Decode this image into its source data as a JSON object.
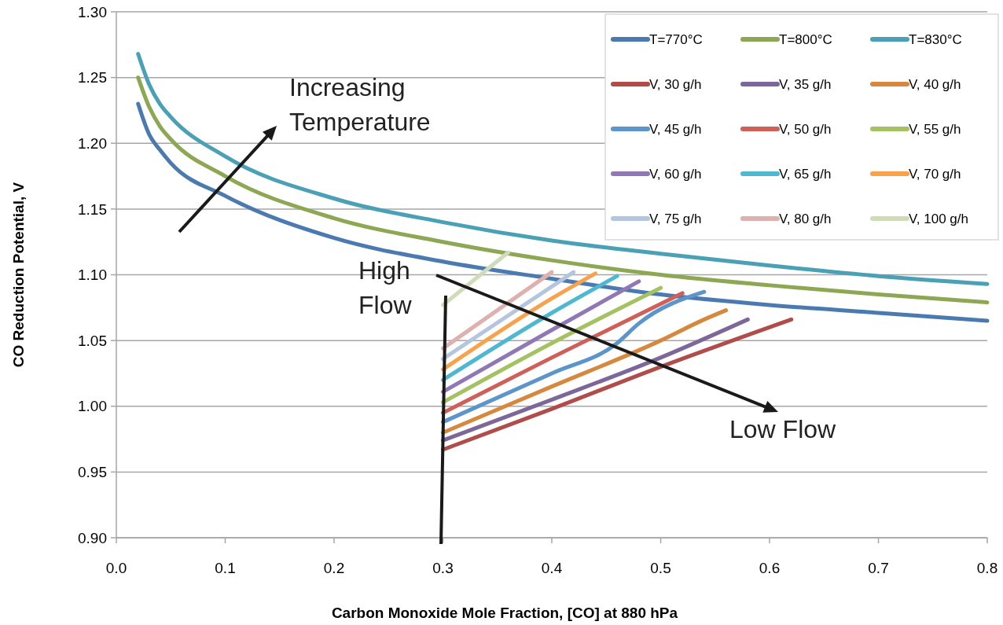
{
  "chart_data": {
    "type": "line",
    "xlabel": "Carbon Monoxide Mole Fraction, [CO] at 880 hPa",
    "ylabel": "CO Reduction Potential, V",
    "xlim": [
      0,
      0.8
    ],
    "xticks": [
      {
        "value": 0,
        "label": "0.0"
      },
      0.1,
      0.2,
      0.3,
      0.4,
      0.5,
      0.6,
      0.7,
      0.8
    ],
    "ylim": [
      0.9,
      1.3
    ],
    "yticks": [
      {
        "value": 0.9,
        "label": "0.90"
      },
      0.95,
      {
        "value": 1,
        "label": "1.00"
      },
      1.05,
      {
        "value": 1.1,
        "label": "1.10"
      },
      1.15,
      {
        "value": 1.2,
        "label": "1.20"
      },
      1.25,
      {
        "value": 1.3,
        "label": "1.30"
      }
    ],
    "grid": "y",
    "legend": "top right",
    "line_style": "solid",
    "marker": "none",
    "annotations": [
      "Increasing Temperature",
      "High Flow",
      "Low Flow"
    ],
    "series": [
      {
        "name": "T=770°C",
        "color": "#4a7ab0",
        "x": [
          0.02,
          0.03,
          0.04,
          0.05,
          0.1,
          0.2,
          0.3,
          0.4,
          0.5,
          0.6,
          0.7,
          0.8
        ],
        "values": [
          1.23,
          1.207,
          1.195,
          1.185,
          1.16,
          1.128,
          1.11,
          1.097,
          1.085,
          1.077,
          1.071,
          1.065
        ]
      },
      {
        "name": "T=800°C",
        "color": "#8da752",
        "x": [
          0.02,
          0.03,
          0.04,
          0.05,
          0.1,
          0.2,
          0.3,
          0.4,
          0.5,
          0.6,
          0.7,
          0.8
        ],
        "values": [
          1.25,
          1.228,
          1.213,
          1.203,
          1.175,
          1.143,
          1.125,
          1.111,
          1.1,
          1.092,
          1.085,
          1.079
        ]
      },
      {
        "name": "T=830°C",
        "color": "#4aa0b5",
        "x": [
          0.02,
          0.03,
          0.04,
          0.05,
          0.1,
          0.2,
          0.3,
          0.4,
          0.5,
          0.6,
          0.7,
          0.8
        ],
        "values": [
          1.268,
          1.245,
          1.23,
          1.22,
          1.19,
          1.158,
          1.14,
          1.126,
          1.116,
          1.107,
          1.099,
          1.093
        ]
      },
      {
        "name": "V, 30 g/h",
        "color": "#b04c49",
        "x": [
          0.3,
          0.4,
          0.5,
          0.62
        ],
        "values": [
          0.967,
          0.998,
          1.03,
          1.066
        ]
      },
      {
        "name": "V, 35 g/h",
        "color": "#7d6699",
        "x": [
          0.3,
          0.4,
          0.5,
          0.58
        ],
        "values": [
          0.974,
          1.005,
          1.037,
          1.066
        ]
      },
      {
        "name": "V, 40 g/h",
        "color": "#d5883e",
        "x": [
          0.3,
          0.4,
          0.5,
          0.54,
          0.56
        ],
        "values": [
          0.98,
          1.015,
          1.05,
          1.066,
          1.073
        ]
      },
      {
        "name": "V, 45 g/h",
        "color": "#5b95cb",
        "x": [
          0.3,
          0.4,
          0.46,
          0.48,
          0.54
        ],
        "values": [
          0.988,
          1.025,
          1.048,
          1.063,
          1.087
        ]
      },
      {
        "name": "V, 50 g/h",
        "color": "#cf5f57",
        "x": [
          0.3,
          0.4,
          0.52
        ],
        "values": [
          0.995,
          1.037,
          1.086
        ]
      },
      {
        "name": "V, 55 g/h",
        "color": "#a5c262",
        "x": [
          0.3,
          0.4,
          0.5
        ],
        "values": [
          1.003,
          1.048,
          1.09
        ]
      },
      {
        "name": "V, 60 g/h",
        "color": "#9078b5",
        "x": [
          0.3,
          0.4,
          0.48
        ],
        "values": [
          1.011,
          1.058,
          1.095
        ]
      },
      {
        "name": "V, 65 g/h",
        "color": "#4eb8d0",
        "x": [
          0.3,
          0.4,
          0.46
        ],
        "values": [
          1.02,
          1.071,
          1.099
        ]
      },
      {
        "name": "V, 70 g/h",
        "color": "#f8a24b",
        "x": [
          0.3,
          0.4,
          0.44
        ],
        "values": [
          1.028,
          1.082,
          1.101
        ]
      },
      {
        "name": "V, 75 g/h",
        "color": "#b3c5df",
        "x": [
          0.3,
          0.42
        ],
        "values": [
          1.036,
          1.102
        ]
      },
      {
        "name": "V, 80 g/h",
        "color": "#deb0ae",
        "x": [
          0.3,
          0.4
        ],
        "values": [
          1.044,
          1.102
        ]
      },
      {
        "name": "V, 100 g/h",
        "color": "#cfdcb8",
        "x": [
          0.3,
          0.36
        ],
        "values": [
          1.077,
          1.117
        ]
      }
    ]
  }
}
